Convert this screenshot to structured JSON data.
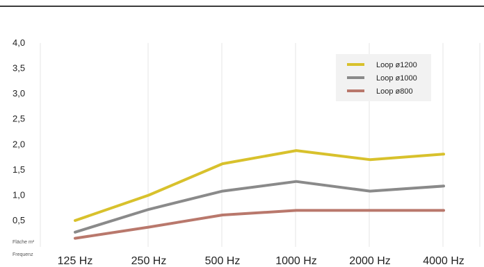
{
  "chart_data": {
    "type": "line",
    "title": "",
    "xlabel": "Frequenz",
    "ylabel": "Fläche m²",
    "categories": [
      "125 Hz",
      "250 Hz",
      "500 Hz",
      "1000 Hz",
      "2000 Hz",
      "4000 Hz"
    ],
    "y_ticks": [
      "0,5",
      "1,0",
      "1,5",
      "2,0",
      "2,5",
      "3,0",
      "3,5",
      "4,0"
    ],
    "ylim": [
      0,
      4.0
    ],
    "grid": "vertical",
    "legend_position": "top-right",
    "series": [
      {
        "name": "Loop ø1200",
        "color": "#d8c12c",
        "values": [
          0.5,
          1.0,
          1.62,
          1.88,
          1.7,
          1.81
        ]
      },
      {
        "name": "Loop ø1000",
        "color": "#8a8a8a",
        "values": [
          0.27,
          0.72,
          1.08,
          1.27,
          1.08,
          1.18
        ]
      },
      {
        "name": "Loop ø800",
        "color": "#b9786c",
        "values": [
          0.15,
          0.37,
          0.61,
          0.7,
          0.7,
          0.7
        ]
      }
    ]
  }
}
